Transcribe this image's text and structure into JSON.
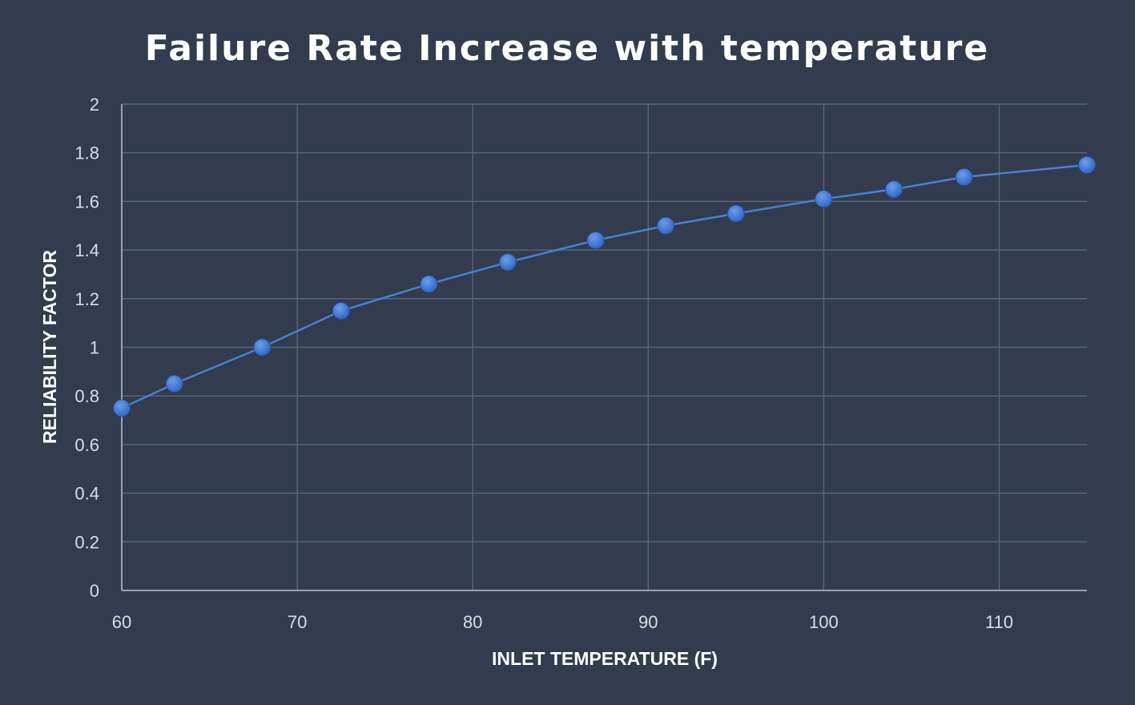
{
  "chart_data": {
    "type": "line",
    "title": "Failure Rate Increase with temperature",
    "xlabel": "INLET TEMPERATURE (F)",
    "ylabel": "RELIABILITY FACTOR",
    "xlim": [
      60,
      115
    ],
    "ylim": [
      0,
      2
    ],
    "x_ticks": [
      60,
      70,
      80,
      90,
      100,
      110
    ],
    "y_ticks": [
      0,
      0.2,
      0.4,
      0.6,
      0.8,
      1,
      1.2,
      1.4,
      1.6,
      1.8,
      2
    ],
    "grid": true,
    "legend": "none",
    "colors": {
      "background": "#323c4e",
      "series": "#4a7fd6",
      "grid": "#58627a"
    },
    "series": [
      {
        "x": [
          60,
          63,
          68,
          72.5,
          77.5,
          82,
          87,
          91,
          95,
          100,
          104,
          108,
          115
        ],
        "y": [
          0.75,
          0.85,
          1.0,
          1.15,
          1.26,
          1.35,
          1.44,
          1.5,
          1.55,
          1.61,
          1.65,
          1.7,
          1.75
        ]
      }
    ]
  }
}
